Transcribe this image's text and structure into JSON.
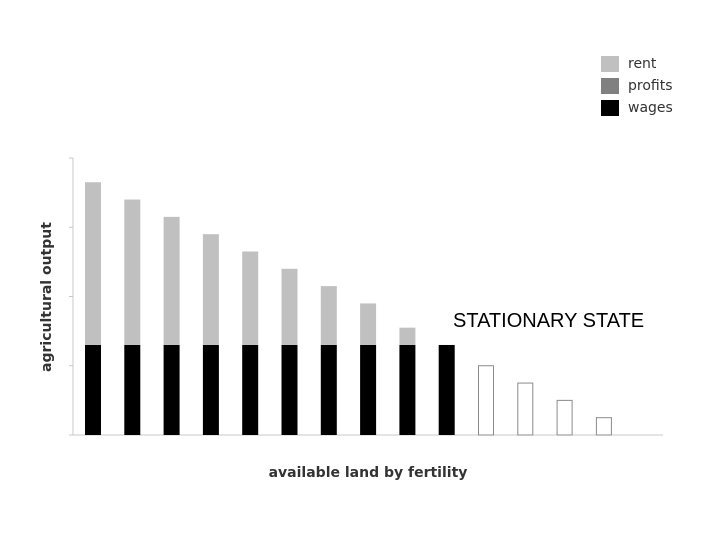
{
  "chart_data": {
    "type": "bar",
    "stacked": true,
    "title": "",
    "xlabel": "available land by fertility",
    "ylabel": "agricultural output",
    "annotation": "STATIONARY STATE",
    "legend_position": "top-right",
    "ylim": [
      0,
      8
    ],
    "grid": false,
    "categories": [
      "",
      "",
      "",
      "",
      "",
      "",
      "",
      "",
      "",
      "",
      "",
      "",
      "",
      ""
    ],
    "series": [
      {
        "name": "rent",
        "color": "#c0c0c0",
        "values": [
          4.7,
          4.2,
          3.7,
          3.2,
          2.7,
          2.2,
          1.7,
          1.2,
          0.5,
          0,
          0,
          0,
          0,
          0
        ]
      },
      {
        "name": "profits",
        "color": "#808080",
        "values": [
          0,
          0,
          0,
          0,
          0,
          0,
          0,
          0,
          0,
          0,
          0,
          0,
          0,
          0
        ]
      },
      {
        "name": "wages",
        "color": "#000000",
        "values": [
          2.6,
          2.6,
          2.6,
          2.6,
          2.6,
          2.6,
          2.6,
          2.6,
          2.6,
          2.6,
          0,
          0,
          0,
          0
        ]
      }
    ],
    "submarginal_output": [
      0,
      0,
      0,
      0,
      0,
      0,
      0,
      0,
      0,
      0,
      2.0,
      1.5,
      1.0,
      0.5
    ]
  }
}
